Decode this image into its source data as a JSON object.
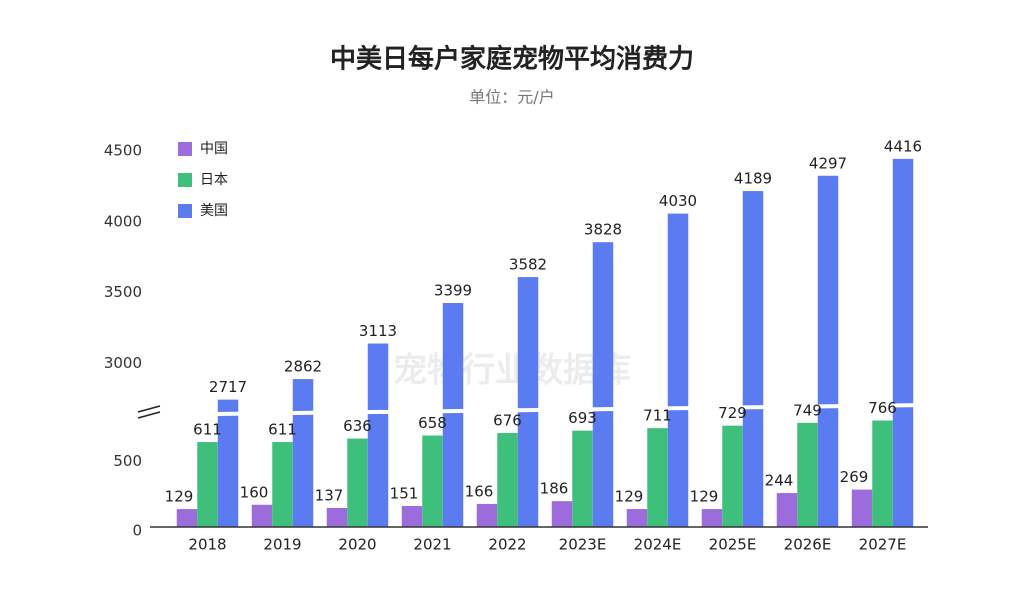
{
  "chart_data": {
    "type": "bar",
    "title": "中美日每户家庭宠物平均消费力",
    "subtitle": "单位：元/户",
    "watermark": "宠物行业数据库",
    "categories": [
      "2018",
      "2019",
      "2020",
      "2021",
      "2022",
      "2023E",
      "2024E",
      "2025E",
      "2026E",
      "2027E"
    ],
    "series": [
      {
        "name": "中国",
        "color": "#9d6cdc",
        "values": [
          129,
          160,
          137,
          151,
          166,
          186,
          129,
          129,
          244,
          269
        ]
      },
      {
        "name": "日本",
        "color": "#3ec07c",
        "values": [
          611,
          611,
          636,
          658,
          676,
          693,
          711,
          729,
          749,
          766
        ]
      },
      {
        "name": "美国",
        "color": "#5a7cf0",
        "values": [
          2717,
          2862,
          3113,
          3399,
          3582,
          3828,
          4030,
          4189,
          4297,
          4416
        ]
      }
    ],
    "ylim": [
      0,
      4500
    ],
    "axis_break": [
      820,
      2665
    ],
    "yticks": [
      0,
      500,
      3000,
      3500,
      4000,
      4500
    ],
    "grid": false,
    "legend": "top-left"
  }
}
